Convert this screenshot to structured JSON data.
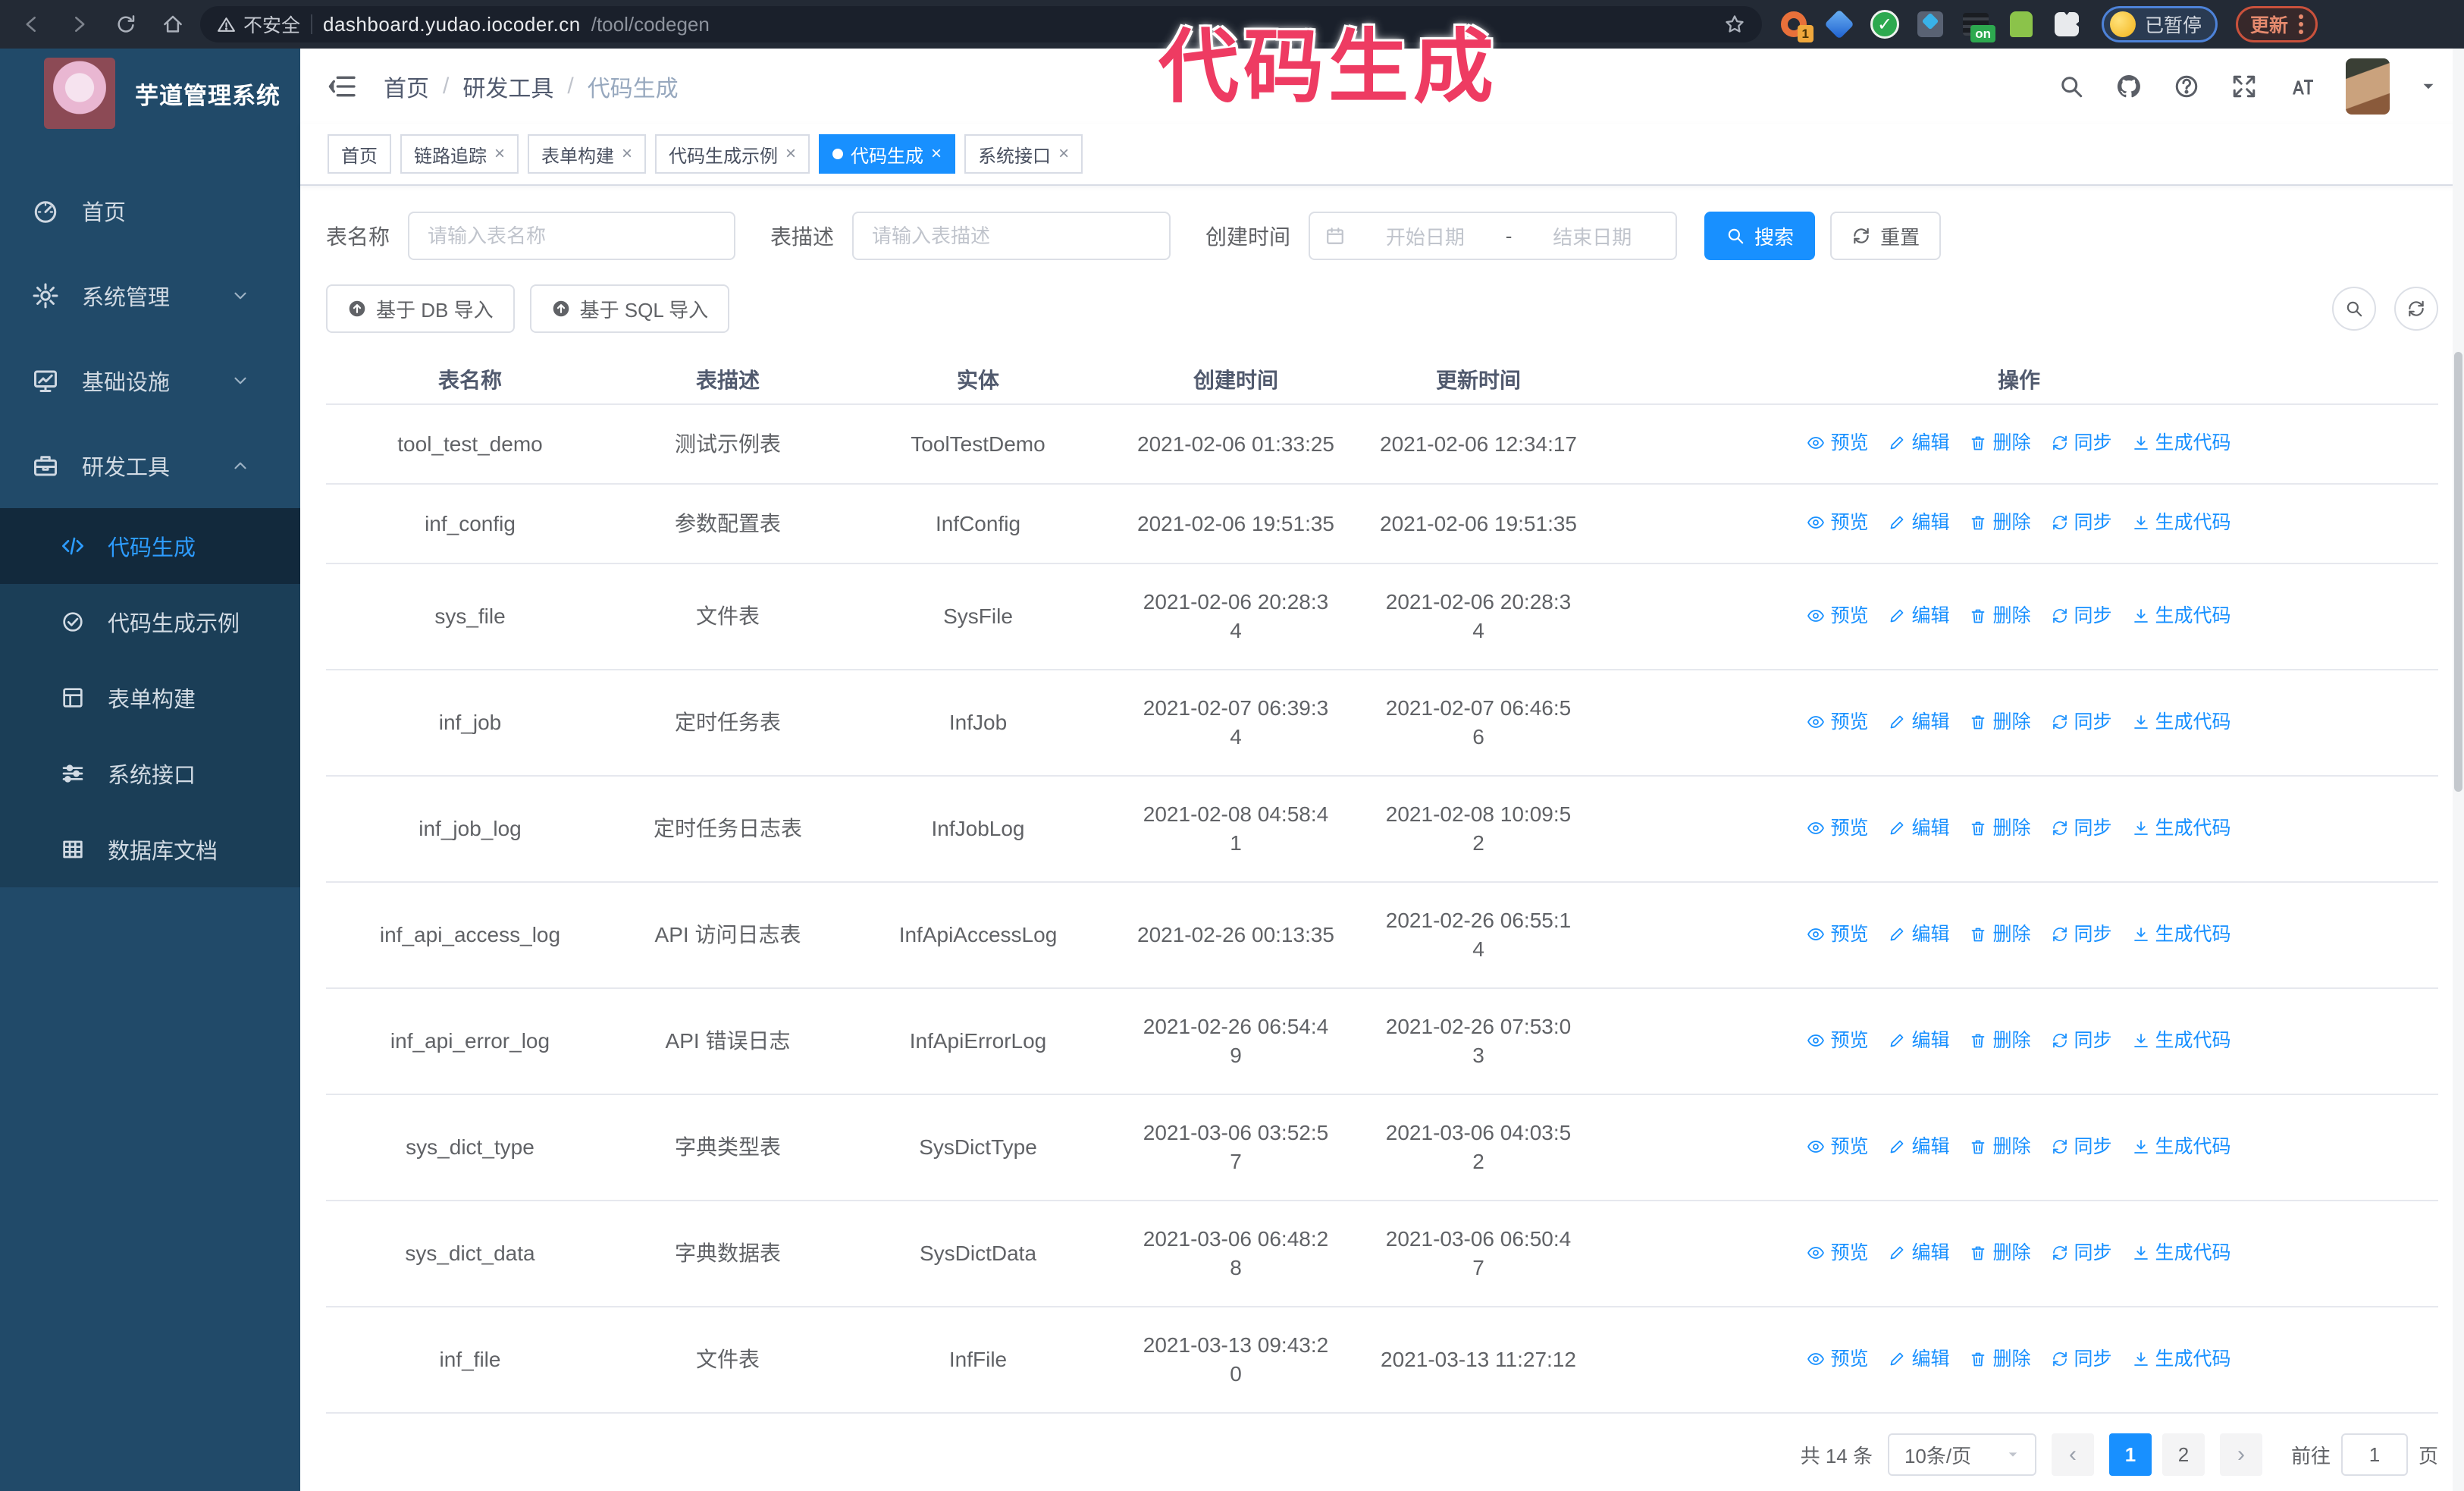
{
  "browser": {
    "security_label": "不安全",
    "url_host": "dashboard.yudao.iocoder.cn",
    "url_path": "/tool/codegen",
    "profile_chip_label": "已暂停",
    "update_button_label": "更新"
  },
  "annotation": {
    "text": "代码生成",
    "color": "#ee3b62"
  },
  "sidebar": {
    "logo_title": "芋道管理系统",
    "items": [
      {
        "label": "首页",
        "icon": "dashboard-icon",
        "chevron": null
      },
      {
        "label": "系统管理",
        "icon": "gear-icon",
        "chevron": "chevron-down-icon"
      },
      {
        "label": "基础设施",
        "icon": "monitor-icon",
        "chevron": "chevron-down-icon"
      },
      {
        "label": "研发工具",
        "icon": "toolbox-icon",
        "chevron": "chevron-up-icon"
      }
    ],
    "subitems": [
      {
        "label": "代码生成",
        "icon": "code-icon",
        "active": true
      },
      {
        "label": "代码生成示例",
        "icon": "check-circle-icon",
        "active": false
      },
      {
        "label": "表单构建",
        "icon": "form-icon",
        "active": false
      },
      {
        "label": "系统接口",
        "icon": "sliders-icon",
        "active": false
      },
      {
        "label": "数据库文档",
        "icon": "db-doc-icon",
        "active": false
      }
    ]
  },
  "header": {
    "breadcrumb": [
      "首页",
      "研发工具",
      "代码生成"
    ],
    "breadcrumb_separator": "/",
    "icons": [
      "search-icon",
      "github-icon",
      "help-icon",
      "fullscreen-icon",
      "font-size-icon"
    ]
  },
  "tabs": [
    {
      "label": "首页",
      "closable": false,
      "active": false
    },
    {
      "label": "链路追踪",
      "closable": true,
      "active": false
    },
    {
      "label": "表单构建",
      "closable": true,
      "active": false
    },
    {
      "label": "代码生成示例",
      "closable": true,
      "active": false
    },
    {
      "label": "代码生成",
      "closable": true,
      "active": true
    },
    {
      "label": "系统接口",
      "closable": true,
      "active": false
    }
  ],
  "filters": {
    "name_label": "表名称",
    "name_placeholder": "请输入表名称",
    "desc_label": "表描述",
    "desc_placeholder": "请输入表描述",
    "time_label": "创建时间",
    "start_placeholder": "开始日期",
    "separator": "-",
    "end_placeholder": "结束日期",
    "search_label": "搜索",
    "reset_label": "重置"
  },
  "toolbar": {
    "import_db_label": "基于 DB 导入",
    "import_sql_label": "基于 SQL 导入"
  },
  "table": {
    "columns": [
      "表名称",
      "表描述",
      "实体",
      "创建时间",
      "更新时间",
      "操作"
    ],
    "actions": [
      {
        "label": "预览",
        "icon": "eye-icon",
        "name": "preview-link"
      },
      {
        "label": "编辑",
        "icon": "edit-icon",
        "name": "edit-link"
      },
      {
        "label": "删除",
        "icon": "delete-icon",
        "name": "delete-link"
      },
      {
        "label": "同步",
        "icon": "sync-icon",
        "name": "sync-link"
      },
      {
        "label": "生成代码",
        "icon": "download-icon",
        "name": "generate-code-link"
      }
    ],
    "rows": [
      {
        "name": "tool_test_demo",
        "desc": "测试示例表",
        "entity": "ToolTestDemo",
        "created": "2021-02-06 01:33:25",
        "updated": "2021-02-06 12:34:17"
      },
      {
        "name": "inf_config",
        "desc": "参数配置表",
        "entity": "InfConfig",
        "created": "2021-02-06 19:51:35",
        "updated": "2021-02-06 19:51:35"
      },
      {
        "name": "sys_file",
        "desc": "文件表",
        "entity": "SysFile",
        "created": "2021-02-06 20:28:3\n4",
        "updated": "2021-02-06 20:28:3\n4"
      },
      {
        "name": "inf_job",
        "desc": "定时任务表",
        "entity": "InfJob",
        "created": "2021-02-07 06:39:3\n4",
        "updated": "2021-02-07 06:46:5\n6"
      },
      {
        "name": "inf_job_log",
        "desc": "定时任务日志表",
        "entity": "InfJobLog",
        "created": "2021-02-08 04:58:4\n1",
        "updated": "2021-02-08 10:09:5\n2"
      },
      {
        "name": "inf_api_access_log",
        "desc": "API 访问日志表",
        "entity": "InfApiAccessLog",
        "created": "2021-02-26 00:13:35",
        "updated": "2021-02-26 06:55:1\n4"
      },
      {
        "name": "inf_api_error_log",
        "desc": "API 错误日志",
        "entity": "InfApiErrorLog",
        "created": "2021-02-26 06:54:4\n9",
        "updated": "2021-02-26 07:53:0\n3"
      },
      {
        "name": "sys_dict_type",
        "desc": "字典类型表",
        "entity": "SysDictType",
        "created": "2021-03-06 03:52:5\n7",
        "updated": "2021-03-06 04:03:5\n2"
      },
      {
        "name": "sys_dict_data",
        "desc": "字典数据表",
        "entity": "SysDictData",
        "created": "2021-03-06 06:48:2\n8",
        "updated": "2021-03-06 06:50:4\n7"
      },
      {
        "name": "inf_file",
        "desc": "文件表",
        "entity": "InfFile",
        "created": "2021-03-13 09:43:2\n0",
        "updated": "2021-03-13 11:27:12"
      }
    ]
  },
  "pagination": {
    "total": "共 14 条",
    "page_size": "10条/页",
    "pages": [
      "1",
      "2"
    ],
    "active_page": "1",
    "goto_label": "前往",
    "goto_value": "1",
    "page_suffix": "页"
  },
  "colors": {
    "accent_blue": "#1890ff",
    "sidebar_bg": "#214a69",
    "submenu_bg": "#1b3e57",
    "annotation_pink": "#ee3b62"
  }
}
